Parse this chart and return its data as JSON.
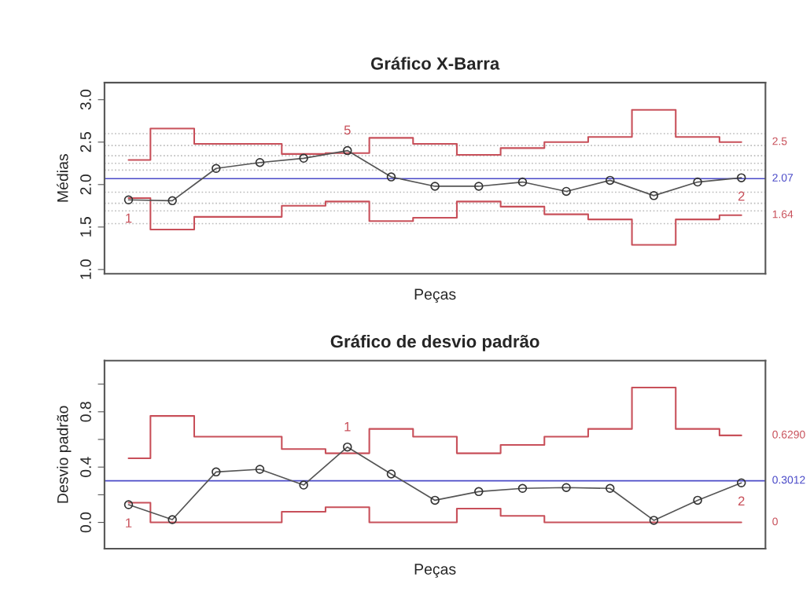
{
  "chart_data": [
    {
      "type": "line",
      "title": "Gráfico X-Barra",
      "xlabel": "Peças",
      "ylabel": "Médias",
      "categories": [
        null,
        null,
        null,
        null,
        null,
        null,
        null,
        null,
        null,
        null,
        null,
        null,
        null,
        null,
        null
      ],
      "series": [
        {
          "color": "#555555",
          "marker": "circle",
          "values": [
            1.82,
            1.81,
            2.19,
            2.26,
            2.31,
            2.4,
            2.09,
            1.98,
            1.98,
            2.03,
            1.92,
            2.05,
            1.87,
            2.03,
            2.08
          ]
        },
        {
          "name": "2.5",
          "type": "step",
          "color": "#c8505a",
          "values": [
            2.29,
            2.66,
            2.48,
            2.48,
            2.36,
            2.37,
            2.55,
            2.48,
            2.35,
            2.43,
            2.5,
            2.56,
            2.88,
            2.56,
            2.5
          ]
        },
        {
          "name": "1.64",
          "type": "step",
          "color": "#c8505a",
          "values": [
            1.84,
            1.47,
            1.62,
            1.62,
            1.75,
            1.8,
            1.57,
            1.61,
            1.8,
            1.74,
            1.65,
            1.59,
            1.29,
            1.59,
            1.64
          ]
        }
      ],
      "annotations": [
        "1",
        "5",
        "2"
      ],
      "ylim": [
        0.95,
        3.2
      ],
      "yticks": [
        {
          "value": 1.0,
          "label": "1.0"
        },
        1.5,
        {
          "value": 2.0,
          "label": "2.0"
        },
        2.5,
        {
          "value": 3.0,
          "label": "3.0"
        }
      ],
      "ref_lines": [
        {
          "axis": "y",
          "value": 2.07,
          "label": "2.07",
          "color": "#4a4ac8"
        },
        {
          "axis": "y",
          "value": 2.6,
          "color": "#bbbbbb",
          "line_style": "dotted"
        },
        {
          "axis": "y",
          "value": 2.46,
          "color": "#bbbbbb",
          "line_style": "dotted"
        },
        {
          "axis": "y",
          "value": 2.34,
          "color": "#bbbbbb",
          "line_style": "dotted"
        },
        {
          "axis": "y",
          "value": 2.25,
          "color": "#bbbbbb",
          "line_style": "dotted"
        },
        {
          "axis": "y",
          "value": 2.17,
          "color": "#bbbbbb",
          "line_style": "dotted"
        },
        {
          "axis": "y",
          "value": 1.91,
          "color": "#bbbbbb",
          "line_style": "dotted"
        },
        {
          "axis": "y",
          "value": 1.78,
          "color": "#bbbbbb",
          "line_style": "dotted"
        },
        {
          "axis": "y",
          "value": 1.69,
          "color": "#bbbbbb",
          "line_style": "dotted"
        },
        {
          "axis": "y",
          "value": 1.54,
          "color": "#bbbbbb",
          "line_style": "dotted"
        }
      ],
      "grid": false
    },
    {
      "type": "line",
      "title": "Gráfico de desvio padrão",
      "xlabel": "Peças",
      "ylabel": "Desvio padrão",
      "categories": [
        null,
        null,
        null,
        null,
        null,
        null,
        null,
        null,
        null,
        null,
        null,
        null,
        null,
        null,
        null
      ],
      "series": [
        {
          "color": "#555555",
          "marker": "circle",
          "values": [
            0.128,
            0.02,
            0.365,
            0.384,
            0.27,
            0.545,
            0.35,
            0.16,
            0.223,
            0.246,
            0.252,
            0.246,
            0.015,
            0.16,
            0.286
          ]
        },
        {
          "name": "0.6290",
          "type": "step",
          "color": "#c8505a",
          "values": [
            0.464,
            0.77,
            0.62,
            0.62,
            0.53,
            0.5,
            0.676,
            0.62,
            0.5,
            0.56,
            0.62,
            0.676,
            0.975,
            0.676,
            0.629
          ]
        },
        {
          "name": "0",
          "type": "step",
          "color": "#c8505a",
          "values": [
            0.142,
            0,
            0,
            0,
            0.077,
            0.11,
            0,
            0,
            0.1,
            0.047,
            0,
            0,
            0,
            0,
            0
          ]
        }
      ],
      "annotations": [
        "1",
        "1",
        "2"
      ],
      "ylim": [
        -0.19,
        1.17
      ],
      "yticks": [
        {
          "value": 0.0,
          "label": "0.0"
        },
        {
          "value": 0.2,
          "label": null
        },
        0.4,
        {
          "value": 0.6,
          "label": null
        },
        0.8,
        {
          "value": 1.0,
          "label": null
        }
      ],
      "ref_lines": [
        {
          "axis": "y",
          "value": 0.3012,
          "label": "0.3012",
          "color": "#4a4ac8"
        }
      ],
      "grid": false
    }
  ]
}
